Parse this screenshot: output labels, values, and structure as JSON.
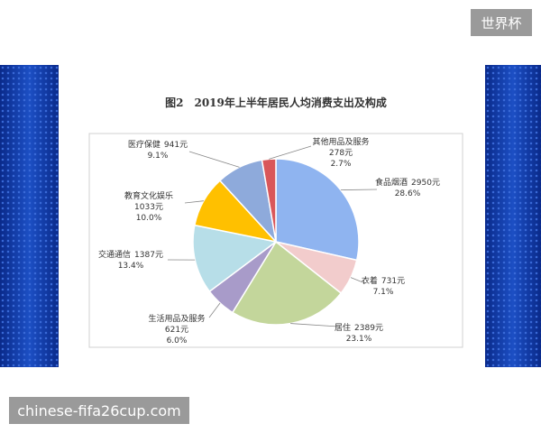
{
  "watermark_top": "世界杯",
  "watermark_bottom": "chinese-fifa26cup.com",
  "chart_data": {
    "type": "pie",
    "title": "图2　2019年上半年居民人均消费支出及构成",
    "categories": [
      "食品烟酒",
      "衣着",
      "居住",
      "生活用品及服务",
      "交通通信",
      "教育文化娱乐",
      "医疗保健",
      "其他用品及服务"
    ],
    "values": [
      2950,
      731,
      2389,
      621,
      1387,
      1033,
      941,
      278
    ],
    "value_labels": [
      "2950元",
      "731元",
      "2389元",
      "621元",
      "1387元",
      "1033元",
      "941元",
      "278元"
    ],
    "percent_labels": [
      "28.6%",
      "7.1%",
      "23.1%",
      "6.0%",
      "13.4%",
      "10.0%",
      "9.1%",
      "2.7%"
    ],
    "colors": [
      "#8fb4f0",
      "#f2cccc",
      "#c3d69b",
      "#a89bc9",
      "#b7dee8",
      "#ffc000",
      "#8eaadb",
      "#d9575a"
    ]
  }
}
